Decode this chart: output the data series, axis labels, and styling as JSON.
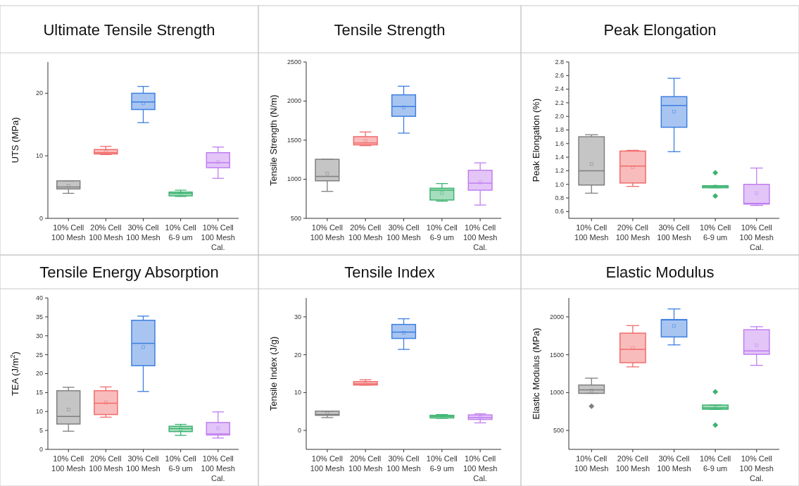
{
  "chart_data": [
    {
      "type": "box",
      "title": "Ultimate Tensile Strength",
      "ylabel": "UTS (MPa)",
      "categories": [
        "10% Cell\n100 Mesh",
        "20% Cell\n100 Mesh",
        "30% Cell\n100 Mesh",
        "10% Cell\n6-9 um",
        "10% Cell\n100 Mesh\nCal."
      ],
      "colors": [
        "#7f7f7f",
        "#f26b6b",
        "#3d7fe0",
        "#3cb371",
        "#c07ff0"
      ],
      "ylim": [
        0,
        25
      ],
      "yticks": [
        0,
        10,
        20
      ],
      "grid": false,
      "boxes": [
        {
          "low": 4.0,
          "q1": 4.7,
          "median": 5.0,
          "q3": 6.0,
          "high": 6.0,
          "mean": 5.2
        },
        {
          "low": 10.2,
          "q1": 10.3,
          "median": 10.5,
          "q3": 11.0,
          "high": 11.5,
          "mean": 10.7
        },
        {
          "low": 15.3,
          "q1": 17.4,
          "median": 18.6,
          "q3": 20.0,
          "high": 21.1,
          "mean": 18.4
        },
        {
          "low": 3.5,
          "q1": 3.6,
          "median": 4.0,
          "q3": 4.2,
          "high": 4.5,
          "mean": 3.9
        },
        {
          "low": 6.4,
          "q1": 8.1,
          "median": 8.9,
          "q3": 10.5,
          "high": 11.4,
          "mean": 9.0
        }
      ]
    },
    {
      "type": "box",
      "title": "Tensile Strength",
      "ylabel": "Tensile Strength (N/m)",
      "categories": [
        "10% Cell\n100 Mesh",
        "20% Cell\n100 Mesh",
        "30% Cell\n100 Mesh",
        "10% Cell\n6-9 um",
        "10% Cell\n100 Mesh\nCal."
      ],
      "colors": [
        "#7f7f7f",
        "#f26b6b",
        "#3d7fe0",
        "#3cb371",
        "#c07ff0"
      ],
      "ylim": [
        500,
        2500
      ],
      "yticks": [
        500,
        1000,
        1500,
        2000,
        2500
      ],
      "grid": false,
      "boxes": [
        {
          "low": 845,
          "q1": 980,
          "median": 1035,
          "q3": 1255,
          "high": 1255,
          "mean": 1075
        },
        {
          "low": 1430,
          "q1": 1440,
          "median": 1465,
          "q3": 1545,
          "high": 1605,
          "mean": 1490
        },
        {
          "low": 1590,
          "q1": 1805,
          "median": 1930,
          "q3": 2080,
          "high": 2190,
          "mean": 1920
        },
        {
          "low": 720,
          "q1": 735,
          "median": 860,
          "q3": 885,
          "high": 945,
          "mean": 825
        },
        {
          "low": 670,
          "q1": 860,
          "median": 950,
          "q3": 1115,
          "high": 1210,
          "mean": 960
        }
      ]
    },
    {
      "type": "box",
      "title": "Peak Elongation",
      "ylabel": "Peak Elongation (%)",
      "categories": [
        "10% Cell\n100 Mesh",
        "20% Cell\n100 Mesh",
        "30% Cell\n100 Mesh",
        "10% Cell\n6-9 um",
        "10% Cell\n100 Mesh\nCal."
      ],
      "colors": [
        "#7f7f7f",
        "#f26b6b",
        "#3d7fe0",
        "#3cb371",
        "#c07ff0"
      ],
      "ylim": [
        0.5,
        2.8
      ],
      "yticks": [
        0.6,
        0.8,
        {
          "value": 1,
          "label": "1.0"
        },
        1.2,
        1.4,
        1.6,
        1.8,
        {
          "value": 2,
          "label": "2.0"
        },
        2.2,
        2.4,
        2.6,
        2.8
      ],
      "grid": false,
      "boxes": [
        {
          "low": 0.87,
          "q1": 0.99,
          "median": 1.2,
          "q3": 1.7,
          "high": 1.73,
          "mean": 1.3
        },
        {
          "low": 0.97,
          "q1": 1.02,
          "median": 1.27,
          "q3": 1.49,
          "high": 1.5,
          "mean": 1.25
        },
        {
          "low": 1.48,
          "q1": 1.84,
          "median": 2.16,
          "q3": 2.29,
          "high": 2.56,
          "mean": 2.07
        },
        {
          "low": 0.95,
          "q1": 0.95,
          "median": 0.97,
          "q3": 0.98,
          "high": 0.98,
          "mean": 0.97,
          "outliers": [
            1.17,
            0.83
          ]
        },
        {
          "low": 0.69,
          "q1": 0.71,
          "median": 0.72,
          "q3": 1.0,
          "high": 1.24,
          "mean": 0.87
        }
      ]
    },
    {
      "type": "box",
      "title": "Tensile Energy Absorption",
      "ylabel": "TEA (J/m$^{2}$)",
      "categories": [
        "10% Cell\n100 Mesh",
        "20% Cell\n100 Mesh",
        "30% Cell\n100 Mesh",
        "10% Cell\n6-9 um",
        "10% Cell\n100 Mesh\nCal."
      ],
      "colors": [
        "#7f7f7f",
        "#f26b6b",
        "#3d7fe0",
        "#3cb371",
        "#c07ff0"
      ],
      "ylim": [
        0,
        40
      ],
      "yticks": [
        0,
        5,
        10,
        15,
        20,
        25,
        30,
        35,
        40
      ],
      "grid": false,
      "boxes": [
        {
          "low": 4.8,
          "q1": 6.7,
          "median": 8.7,
          "q3": 15.5,
          "high": 16.4,
          "mean": 10.5
        },
        {
          "low": 8.5,
          "q1": 9.2,
          "median": 12.2,
          "q3": 15.5,
          "high": 16.5,
          "mean": 12.4
        },
        {
          "low": 15.3,
          "q1": 22.1,
          "median": 28.0,
          "q3": 34.1,
          "high": 35.2,
          "mean": 27.0
        },
        {
          "low": 3.7,
          "q1": 4.7,
          "median": 5.5,
          "q3": 6.1,
          "high": 6.6,
          "mean": 5.3
        },
        {
          "low": 3.0,
          "q1": 3.8,
          "median": 4.1,
          "q3": 7.1,
          "high": 9.9,
          "mean": 5.6
        }
      ]
    },
    {
      "type": "box",
      "title": "Tensile Index",
      "ylabel": "Tensile Index (J/g)",
      "categories": [
        "10% Cell\n100 Mesh",
        "20% Cell\n100 Mesh",
        "30% Cell\n100 Mesh",
        "10% Cell\n6-9 um",
        "10% Cell\n100 Mesh\nCal."
      ],
      "colors": [
        "#7f7f7f",
        "#f26b6b",
        "#3d7fe0",
        "#3cb371",
        "#c07ff0"
      ],
      "ylim": [
        -5,
        35
      ],
      "yticks": [
        0,
        10,
        20,
        30
      ],
      "grid": false,
      "boxes": [
        {
          "low": 3.4,
          "q1": 4.0,
          "median": 4.2,
          "q3": 5.1,
          "high": 5.1,
          "mean": 4.5
        },
        {
          "low": 12.0,
          "q1": 12.0,
          "median": 12.3,
          "q3": 12.9,
          "high": 13.4,
          "mean": 12.4
        },
        {
          "low": 21.4,
          "q1": 24.3,
          "median": 26.0,
          "q3": 28.0,
          "high": 29.5,
          "mean": 25.8
        },
        {
          "low": 3.2,
          "q1": 3.3,
          "median": 3.7,
          "q3": 4.0,
          "high": 4.2,
          "mean": 3.7
        },
        {
          "low": 2.0,
          "q1": 2.9,
          "median": 3.4,
          "q3": 4.1,
          "high": 4.4,
          "mean": 3.5
        }
      ]
    },
    {
      "type": "box",
      "title": "Elastic Modulus",
      "ylabel": "Elastic Modulus (MPa)",
      "categories": [
        "10% Cell\n100 Mesh",
        "20% Cell\n100 Mesh",
        "30% Cell\n100 Mesh",
        "10% Cell\n6-9 um",
        "10% Cell\n100 Mesh\nCal."
      ],
      "colors": [
        "#7f7f7f",
        "#f26b6b",
        "#3d7fe0",
        "#3cb371",
        "#c07ff0"
      ],
      "ylim": [
        250,
        2250
      ],
      "yticks": [
        500,
        1000,
        1500,
        2000
      ],
      "grid": false,
      "boxes": [
        {
          "low": 990,
          "q1": 990,
          "median": 1035,
          "q3": 1100,
          "high": 1190,
          "mean": 1025,
          "outliers": [
            820
          ]
        },
        {
          "low": 1340,
          "q1": 1395,
          "median": 1570,
          "q3": 1785,
          "high": 1885,
          "mean": 1590
        },
        {
          "low": 1630,
          "q1": 1735,
          "median": 1960,
          "q3": 1965,
          "high": 2105,
          "mean": 1880
        },
        {
          "low": 780,
          "q1": 780,
          "median": 800,
          "q3": 835,
          "high": 835,
          "mean": 800,
          "outliers": [
            1010,
            570
          ]
        },
        {
          "low": 1360,
          "q1": 1505,
          "median": 1550,
          "q3": 1830,
          "high": 1870,
          "mean": 1625
        }
      ]
    }
  ]
}
